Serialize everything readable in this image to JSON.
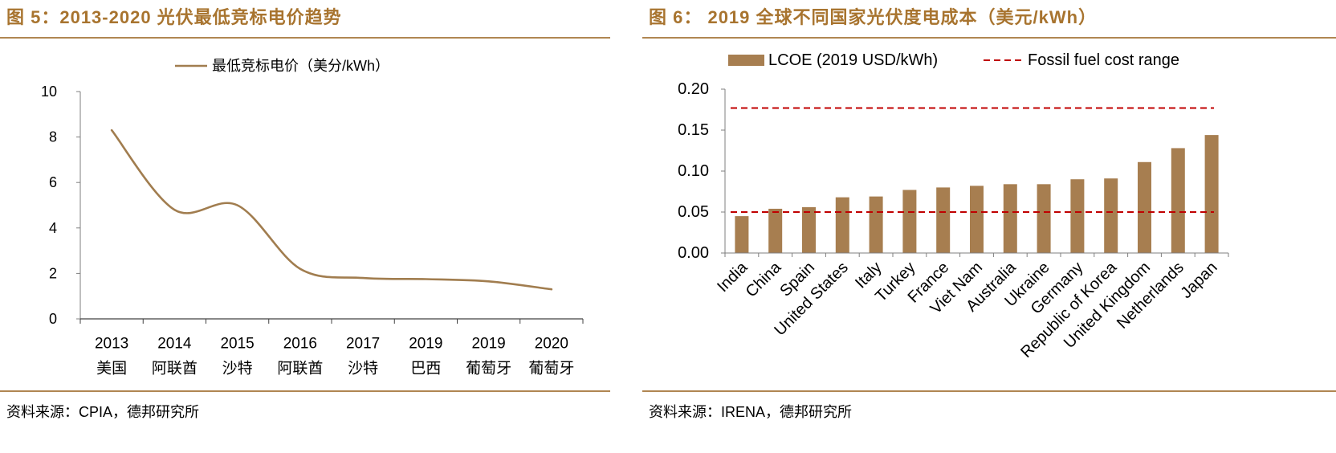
{
  "theme": {
    "title_color": "#A8742F",
    "rule_color": "#B08652",
    "line_color": "#A17D4F",
    "bar_color": "#A77E50",
    "reference_line_color": "#C00000",
    "axis_color": "#7F7F7F"
  },
  "chart_data": [
    {
      "type": "line",
      "title": "图 5：2013-2020 光伏最低竞标电价趋势",
      "source": "资料来源：CPIA，德邦研究所",
      "categories": [
        [
          "2013",
          "美国"
        ],
        [
          "2014",
          "阿联酋"
        ],
        [
          "2015",
          "沙特"
        ],
        [
          "2016",
          "阿联酋"
        ],
        [
          "2017",
          "沙特"
        ],
        [
          "2019",
          "巴西"
        ],
        [
          "2019",
          "葡萄牙"
        ],
        [
          "2020",
          "葡萄牙"
        ]
      ],
      "series": [
        {
          "name": "最低竞标电价（美分/kWh）",
          "values": [
            8.3,
            4.8,
            5.0,
            2.2,
            1.8,
            1.75,
            1.65,
            1.3
          ]
        }
      ],
      "ylim": [
        0,
        10
      ],
      "yticks": [
        "0",
        "2",
        "4",
        "6",
        "8",
        "10"
      ],
      "smoothed": true,
      "grid": false,
      "legend": "top"
    },
    {
      "type": "bar",
      "title": "图 6： 2019 全球不同国家光伏度电成本（美元/kWh）",
      "source": "资料来源：IRENA，德邦研究所",
      "categories": [
        "India",
        "China",
        "Spain",
        "United States",
        "Italy",
        "Turkey",
        "France",
        "Viet Nam",
        "Australia",
        "Ukraine",
        "Germany",
        "Republic of Korea",
        "United Kingdom",
        "Netherlands",
        "Japan"
      ],
      "series": [
        {
          "name": "LCOE (2019 USD/kWh)",
          "values": [
            0.045,
            0.054,
            0.056,
            0.068,
            0.069,
            0.077,
            0.08,
            0.082,
            0.084,
            0.084,
            0.09,
            0.091,
            0.111,
            0.128,
            0.144
          ]
        }
      ],
      "reference_lines": {
        "name": "Fossil fuel cost range",
        "values": [
          0.05,
          0.177
        ],
        "style": "dashed"
      },
      "ylim": [
        0,
        0.2
      ],
      "yticks": [
        "0.00",
        "0.05",
        "0.10",
        "0.15",
        "0.20"
      ],
      "grid": false,
      "legend": "top"
    }
  ]
}
